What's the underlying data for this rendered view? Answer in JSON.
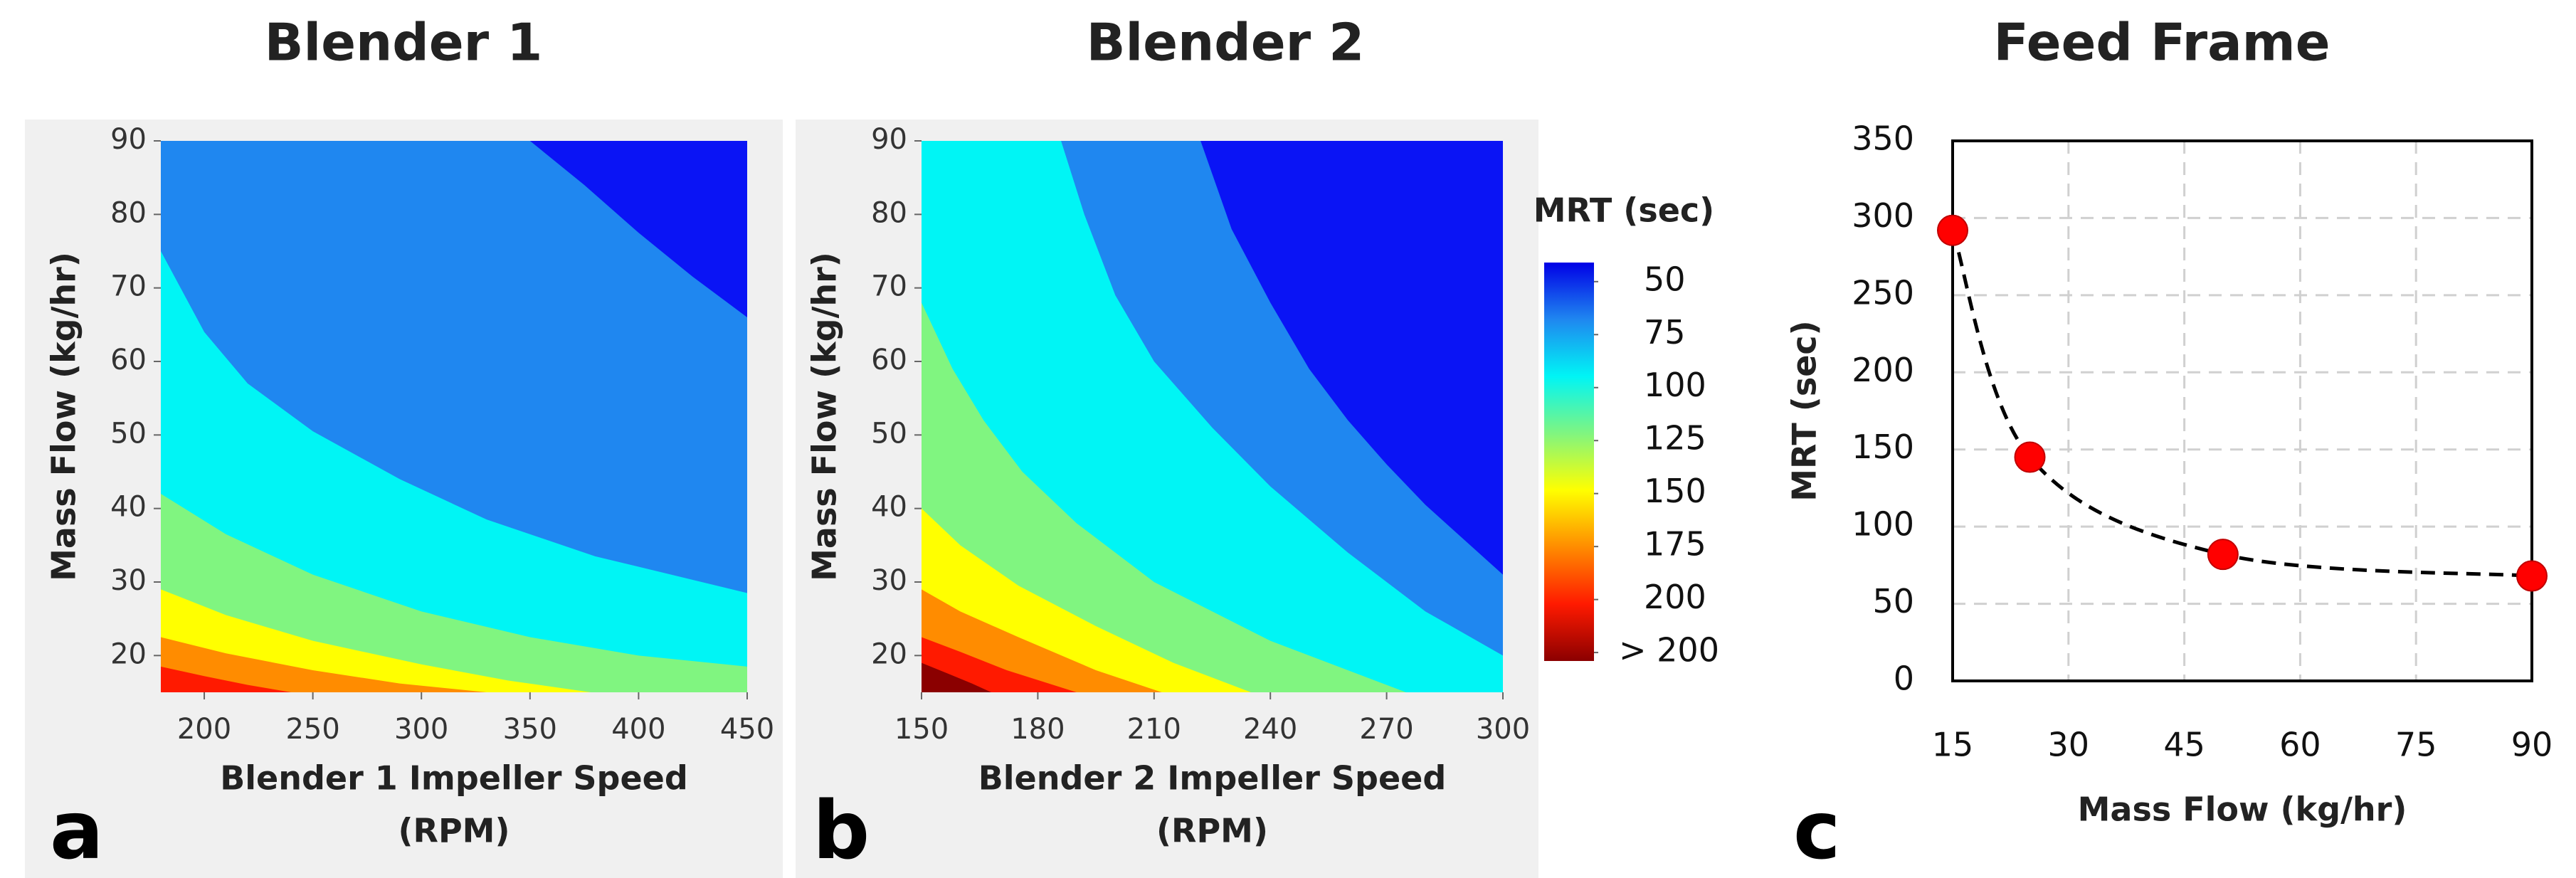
{
  "chart_data": [
    {
      "type": "contour",
      "title": "Blender 1",
      "panel_label": "a",
      "x_label": "Blender 1 Impeller Speed",
      "x_label_line2": "(RPM)",
      "y_label": "Mass Flow (kg/hr)",
      "xlim": [
        180,
        450
      ],
      "xticks": [
        200,
        250,
        300,
        350,
        400,
        450
      ],
      "ylim": [
        15,
        90
      ],
      "yticks": [
        20,
        30,
        40,
        50,
        60,
        70,
        80,
        90
      ],
      "background_color": "#0a14f5",
      "contours": [
        {
          "color": "#1f87f0",
          "x": [
            350,
            375,
            400,
            425,
            450
          ],
          "y": [
            90,
            84,
            77.5,
            71.5,
            66
          ]
        },
        {
          "color": "#00f5f5",
          "x": [
            180,
            200,
            220,
            250,
            290,
            330,
            380,
            450
          ],
          "y": [
            75,
            64,
            57,
            50.5,
            44,
            38.5,
            33.5,
            28.5
          ]
        },
        {
          "color": "#80f580",
          "x": [
            180,
            210,
            250,
            300,
            350,
            400,
            450
          ],
          "y": [
            42,
            36.5,
            31,
            26,
            22.5,
            20,
            18.5
          ]
        },
        {
          "color": "#ffff00",
          "x": [
            180,
            210,
            250,
            300,
            340,
            378
          ],
          "y": [
            29,
            25.5,
            22,
            18.8,
            16.6,
            15
          ]
        },
        {
          "color": "#ff8c00",
          "x": [
            180,
            210,
            250,
            290,
            330
          ],
          "y": [
            22.5,
            20.3,
            18,
            16.2,
            15
          ]
        },
        {
          "color": "#ff1a00",
          "x": [
            180,
            200,
            220,
            240
          ],
          "y": [
            18.5,
            17.2,
            16,
            15
          ]
        }
      ]
    },
    {
      "type": "contour",
      "title": "Blender 2",
      "panel_label": "b",
      "x_label": "Blender 2 Impeller Speed",
      "x_label_line2": "(RPM)",
      "y_label": "Mass Flow (kg/hr)",
      "xlim": [
        150,
        300
      ],
      "xticks": [
        150,
        180,
        210,
        240,
        270,
        300
      ],
      "ylim": [
        15,
        90
      ],
      "yticks": [
        20,
        30,
        40,
        50,
        60,
        70,
        80,
        90
      ],
      "background_color": "#0a14f5",
      "contours": [
        {
          "color": "#1f87f0",
          "x": [
            222,
            230,
            240,
            250,
            260,
            270,
            280,
            300
          ],
          "y": [
            90,
            78,
            68,
            59,
            52,
            46,
            40.5,
            31
          ]
        },
        {
          "color": "#00f5f5",
          "x": [
            186,
            192,
            200,
            210,
            225,
            240,
            260,
            280,
            300
          ],
          "y": [
            90,
            80,
            69,
            60,
            51,
            43,
            34,
            26,
            20
          ]
        },
        {
          "color": "#80f580",
          "x": [
            150,
            158,
            166,
            176,
            190,
            210,
            240,
            275
          ],
          "y": [
            68,
            59,
            52,
            45,
            38,
            30,
            22,
            15
          ]
        },
        {
          "color": "#ffff00",
          "x": [
            150,
            160,
            175,
            195,
            215,
            235
          ],
          "y": [
            40,
            35,
            29.5,
            24,
            19,
            15
          ]
        },
        {
          "color": "#ff8c00",
          "x": [
            150,
            160,
            175,
            195,
            212
          ],
          "y": [
            29,
            26,
            22.5,
            18,
            15
          ]
        },
        {
          "color": "#ff1a00",
          "x": [
            150,
            160,
            172,
            190
          ],
          "y": [
            22.5,
            20.5,
            18,
            15
          ]
        },
        {
          "color": "#8b0000",
          "x": [
            150,
            157,
            163,
            168
          ],
          "y": [
            19,
            17.5,
            16.2,
            15
          ]
        }
      ],
      "colorbar": {
        "title": "MRT (sec)",
        "lim": [
          41,
          229
        ],
        "colors": [
          "#0000e6",
          "#1f87f0",
          "#00f5f5",
          "#80f580",
          "#ffff00",
          "#ff8c00",
          "#ff1a00",
          "#8b0000"
        ],
        "ticks": [
          50,
          75,
          100,
          125,
          150,
          175,
          200,
          {
            "value": 225,
            "label": "> 200"
          }
        ]
      }
    },
    {
      "type": "scatter",
      "title": "Feed Frame",
      "panel_label": "c",
      "x_label": "Mass Flow (kg/hr)",
      "y_label": "MRT (sec)",
      "xlim": [
        15,
        90
      ],
      "xticks": [
        15,
        30,
        45,
        60,
        75,
        90
      ],
      "ylim": [
        0,
        350
      ],
      "yticks": [
        0,
        50,
        100,
        150,
        200,
        250,
        300,
        350
      ],
      "grid": true,
      "trend_line": true,
      "color": "#ff0000",
      "x": [
        15,
        25,
        50,
        90
      ],
      "y": [
        292,
        145,
        82,
        68
      ]
    }
  ]
}
